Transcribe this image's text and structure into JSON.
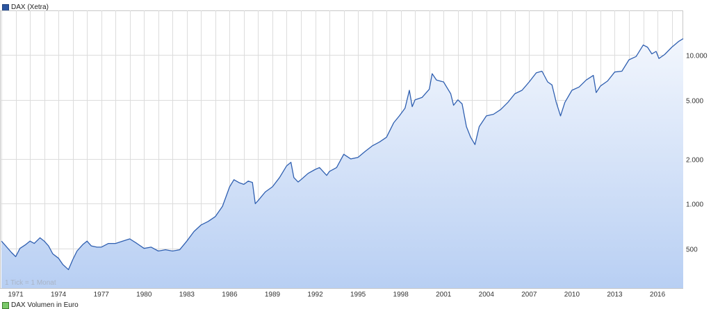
{
  "legend": {
    "dax_label": "DAX (Xetra)",
    "volume_label": "DAX Volumen in Euro"
  },
  "colors": {
    "line": "#2f5fb0",
    "fill_top": "#f2f6fd",
    "fill_bottom": "#b8cff3",
    "grid": "#dcdcdc",
    "volume": "#7bc96a"
  },
  "chart_data": {
    "type": "area",
    "title": "DAX (Xetra)",
    "xlabel": "",
    "ylabel": "",
    "yscale": "log",
    "grid": true,
    "legend_position": "top-left",
    "xlim": [
      1969.9,
      2017.8
    ],
    "ylim": [
      270,
      20000
    ],
    "x_ticks": [
      1971,
      1974,
      1977,
      1980,
      1983,
      1986,
      1989,
      1992,
      1995,
      1998,
      2001,
      2004,
      2007,
      2010,
      2013,
      2016
    ],
    "y_ticks": [
      500,
      1000,
      2000,
      5000,
      10000
    ],
    "y_tick_labels": [
      "500",
      "1.000",
      "2.000",
      "5.000",
      "10.000"
    ],
    "note": "1 Tick = 1 Monat",
    "series": [
      {
        "name": "DAX (Xetra)",
        "x": [
          1970.0,
          1970.3,
          1970.7,
          1971.0,
          1971.3,
          1971.7,
          1972.0,
          1972.3,
          1972.7,
          1973.0,
          1973.3,
          1973.6,
          1974.0,
          1974.3,
          1974.7,
          1975.0,
          1975.3,
          1975.7,
          1976.0,
          1976.3,
          1976.7,
          1977.0,
          1977.5,
          1978.0,
          1978.5,
          1979.0,
          1979.5,
          1980.0,
          1980.5,
          1981.0,
          1981.5,
          1982.0,
          1982.5,
          1983.0,
          1983.5,
          1984.0,
          1984.5,
          1985.0,
          1985.5,
          1986.0,
          1986.3,
          1986.7,
          1987.0,
          1987.3,
          1987.6,
          1987.8,
          1988.0,
          1988.5,
          1989.0,
          1989.5,
          1990.0,
          1990.3,
          1990.5,
          1990.8,
          1991.0,
          1991.5,
          1992.0,
          1992.3,
          1992.8,
          1993.0,
          1993.5,
          1994.0,
          1994.5,
          1995.0,
          1995.5,
          1996.0,
          1996.5,
          1997.0,
          1997.5,
          1997.9,
          1998.3,
          1998.6,
          1998.8,
          1999.0,
          1999.5,
          2000.0,
          2000.2,
          2000.5,
          2001.0,
          2001.5,
          2001.7,
          2002.0,
          2002.3,
          2002.6,
          2002.9,
          2003.2,
          2003.5,
          2004.0,
          2004.5,
          2005.0,
          2005.5,
          2006.0,
          2006.5,
          2007.0,
          2007.5,
          2007.9,
          2008.3,
          2008.6,
          2008.9,
          2009.2,
          2009.5,
          2010.0,
          2010.5,
          2011.0,
          2011.5,
          2011.7,
          2012.0,
          2012.5,
          2013.0,
          2013.5,
          2014.0,
          2014.5,
          2015.0,
          2015.3,
          2015.6,
          2015.9,
          2016.1,
          2016.5,
          2017.0,
          2017.5,
          2017.8
        ],
        "y": [
          560,
          520,
          470,
          440,
          500,
          530,
          560,
          540,
          590,
          560,
          520,
          460,
          430,
          390,
          360,
          420,
          480,
          530,
          560,
          520,
          510,
          510,
          540,
          540,
          560,
          580,
          540,
          500,
          510,
          480,
          490,
          480,
          490,
          560,
          650,
          720,
          760,
          820,
          960,
          1300,
          1450,
          1380,
          1350,
          1420,
          1390,
          1000,
          1050,
          1200,
          1300,
          1500,
          1800,
          1900,
          1500,
          1400,
          1450,
          1600,
          1700,
          1750,
          1550,
          1650,
          1750,
          2150,
          2000,
          2050,
          2250,
          2450,
          2600,
          2800,
          3500,
          3900,
          4400,
          5800,
          4500,
          5000,
          5200,
          5900,
          7500,
          6800,
          6600,
          5500,
          4600,
          5000,
          4700,
          3300,
          2800,
          2500,
          3300,
          3900,
          4000,
          4300,
          4800,
          5500,
          5800,
          6600,
          7600,
          7800,
          6600,
          6300,
          4800,
          3900,
          4800,
          5800,
          6100,
          6800,
          7300,
          5600,
          6200,
          6700,
          7700,
          7800,
          9300,
          9800,
          11700,
          11300,
          10200,
          10600,
          9500,
          10100,
          11300,
          12400,
          12900
        ]
      },
      {
        "name": "DAX Volumen in Euro",
        "x": [],
        "y": []
      }
    ]
  }
}
